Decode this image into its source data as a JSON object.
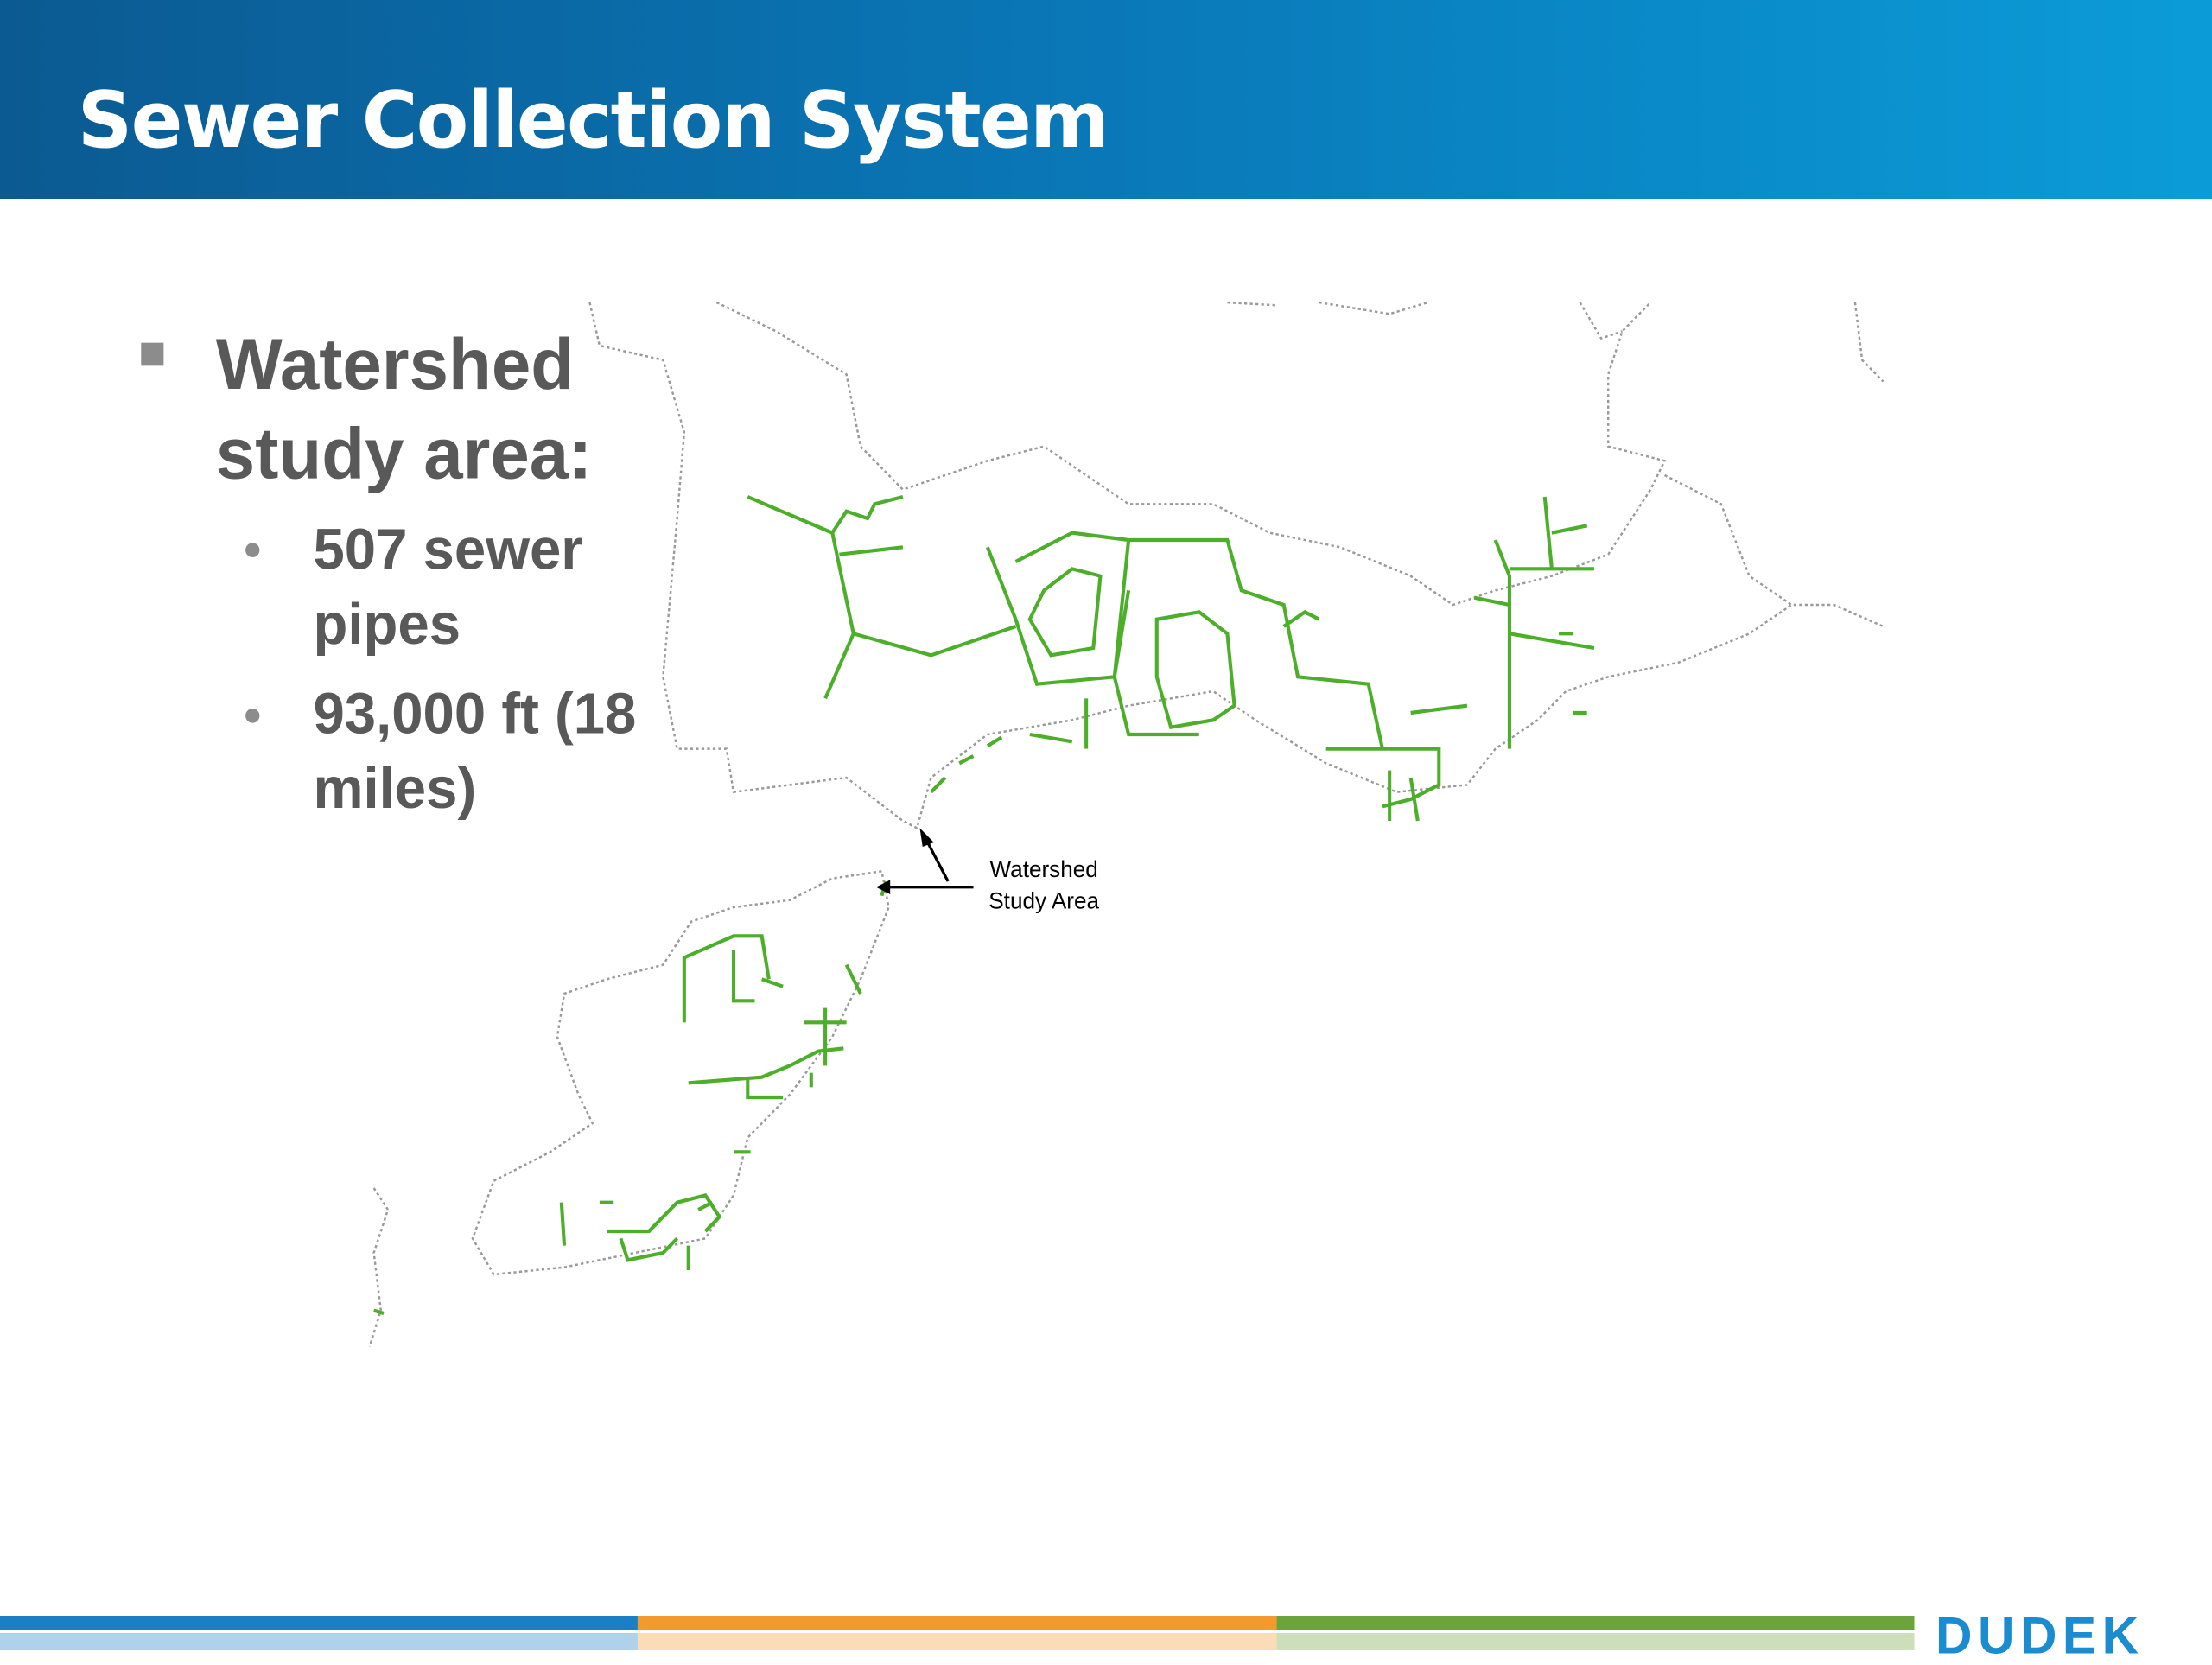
{
  "header": {
    "title": "Sewer Collection System"
  },
  "bullets": [
    {
      "text": "Watershed study area:",
      "sub": [
        "507 sewer pipes",
        "93,000 ft (18 miles)"
      ]
    }
  ],
  "map": {
    "label": "Watershed Study Area"
  },
  "footer": {
    "logo": "DUDEK"
  }
}
